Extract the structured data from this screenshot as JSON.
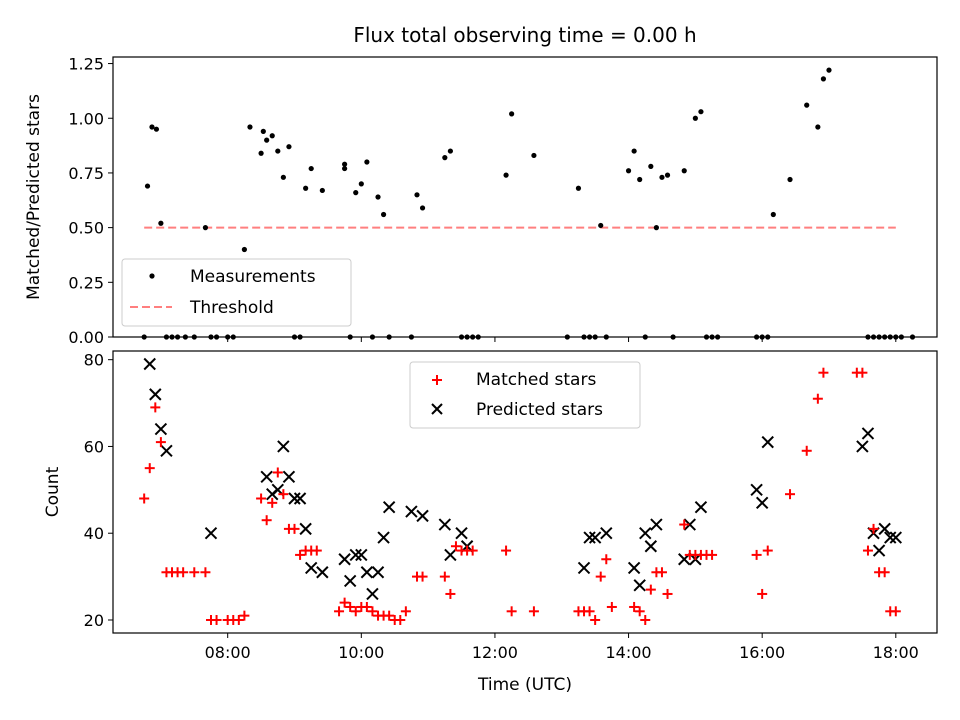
{
  "chart_data": [
    {
      "type": "scatter",
      "title": "Flux total observing time = 0.00 h",
      "xlabel": "",
      "ylabel": "Matched/Predicted stars",
      "x_unit": "hours",
      "xlim": [
        "06:17",
        "18:37"
      ],
      "ylim": [
        0,
        1.28
      ],
      "yticks": [
        0.0,
        0.25,
        0.5,
        0.75,
        1.0,
        1.25
      ],
      "ytick_labels": [
        "0.00",
        "0.25",
        "0.50",
        "0.75",
        "1.00",
        "1.25"
      ],
      "legend": {
        "position": "lower-left",
        "entries": [
          "Measurements",
          "Threshold"
        ]
      },
      "series": [
        {
          "name": "Measurements",
          "style": "black-dot",
          "x": [
            "06:45",
            "06:48",
            "06:52",
            "06:56",
            "07:00",
            "07:05",
            "07:10",
            "07:15",
            "07:22",
            "07:30",
            "07:40",
            "07:45",
            "07:50",
            "08:00",
            "08:05",
            "08:15",
            "08:20",
            "08:30",
            "08:32",
            "08:35",
            "08:40",
            "08:45",
            "08:50",
            "08:55",
            "09:00",
            "09:05",
            "09:10",
            "09:15",
            "09:25",
            "09:45",
            "09:45",
            "09:50",
            "09:55",
            "10:00",
            "10:05",
            "10:10",
            "10:15",
            "10:20",
            "10:25",
            "10:45",
            "10:50",
            "10:55",
            "11:15",
            "11:20",
            "11:30",
            "11:35",
            "11:40",
            "11:45",
            "12:10",
            "12:15",
            "12:35",
            "13:05",
            "13:15",
            "13:20",
            "13:25",
            "13:30",
            "13:35",
            "13:40",
            "14:00",
            "14:05",
            "14:10",
            "14:15",
            "14:20",
            "14:25",
            "14:30",
            "14:35",
            "14:40",
            "14:50",
            "15:00",
            "15:05",
            "15:10",
            "15:15",
            "15:20",
            "15:55",
            "16:00",
            "16:05",
            "16:10",
            "16:25",
            "16:40",
            "16:50",
            "16:55",
            "17:00",
            "17:35",
            "17:40",
            "17:45",
            "17:50",
            "17:55",
            "18:00",
            "18:05",
            "18:15"
          ],
          "y": [
            0.0,
            0.69,
            0.96,
            0.95,
            0.52,
            0.0,
            0.0,
            0.0,
            0.0,
            0.0,
            0.5,
            0.0,
            0.0,
            0.0,
            0.0,
            0.4,
            0.96,
            0.84,
            0.94,
            0.9,
            0.92,
            0.85,
            0.73,
            0.87,
            0.0,
            0.0,
            0.68,
            0.77,
            0.67,
            0.79,
            0.77,
            0.0,
            0.66,
            0.7,
            0.8,
            0.0,
            0.64,
            0.56,
            0.0,
            0.0,
            0.65,
            0.59,
            0.82,
            0.85,
            0.0,
            0.0,
            0.0,
            0.0,
            0.74,
            1.02,
            0.83,
            0.0,
            0.68,
            0.0,
            0.0,
            0.0,
            0.51,
            0.0,
            0.76,
            0.85,
            0.72,
            0.0,
            0.78,
            0.5,
            0.73,
            0.74,
            0.0,
            0.76,
            1.0,
            1.03,
            0.0,
            0.0,
            0.0,
            0.0,
            0.0,
            0.0,
            0.56,
            0.72,
            1.06,
            0.96,
            1.18,
            1.22,
            0.0,
            0.0,
            0.0,
            0.0,
            0.0,
            0.0,
            0.0,
            0.0
          ]
        },
        {
          "name": "Threshold",
          "style": "dashed-salmon",
          "x": [
            "06:45",
            "18:00"
          ],
          "y": [
            0.5,
            0.5
          ]
        }
      ]
    },
    {
      "type": "scatter",
      "title": "",
      "xlabel": "Time (UTC)",
      "ylabel": "Count",
      "x_unit": "hours",
      "xlim": [
        "06:17",
        "18:37"
      ],
      "xticks": [
        "08:00",
        "10:00",
        "12:00",
        "14:00",
        "16:00",
        "18:00"
      ],
      "ylim": [
        17,
        82
      ],
      "yticks": [
        20,
        40,
        60,
        80
      ],
      "legend": {
        "position": "top-center",
        "entries": [
          "Matched stars",
          "Predicted stars"
        ]
      },
      "series": [
        {
          "name": "Matched stars",
          "style": "red-plus",
          "x": [
            "06:45",
            "06:50",
            "06:55",
            "07:00",
            "07:05",
            "07:10",
            "07:15",
            "07:20",
            "07:30",
            "07:40",
            "07:45",
            "07:50",
            "08:00",
            "08:05",
            "08:10",
            "08:15",
            "08:30",
            "08:35",
            "08:40",
            "08:45",
            "08:50",
            "08:55",
            "09:00",
            "09:05",
            "09:10",
            "09:15",
            "09:20",
            "09:40",
            "09:45",
            "09:50",
            "09:55",
            "10:00",
            "10:05",
            "10:10",
            "10:15",
            "10:20",
            "10:25",
            "10:30",
            "10:35",
            "10:40",
            "10:50",
            "10:55",
            "11:15",
            "11:20",
            "11:25",
            "11:30",
            "11:35",
            "11:40",
            "12:10",
            "12:15",
            "12:35",
            "13:15",
            "13:20",
            "13:25",
            "13:30",
            "13:35",
            "13:40",
            "13:45",
            "14:05",
            "14:10",
            "14:15",
            "14:20",
            "14:25",
            "14:30",
            "14:35",
            "14:50",
            "14:55",
            "15:00",
            "15:05",
            "15:10",
            "15:15",
            "15:55",
            "16:00",
            "16:05",
            "16:25",
            "16:40",
            "16:50",
            "16:55",
            "17:25",
            "17:30",
            "17:35",
            "17:40",
            "17:45",
            "17:50",
            "17:55",
            "18:00"
          ],
          "y": [
            48,
            55,
            69,
            61,
            31,
            31,
            31,
            31,
            31,
            31,
            20,
            20,
            20,
            20,
            20,
            21,
            48,
            43,
            47,
            54,
            49,
            41,
            41,
            35,
            36,
            36,
            36,
            22,
            24,
            23,
            22,
            23,
            23,
            22,
            21,
            21,
            21,
            20,
            20,
            22,
            30,
            30,
            30,
            26,
            37,
            36,
            36,
            36,
            36,
            22,
            22,
            22,
            22,
            22,
            20,
            30,
            34,
            23,
            23,
            22,
            20,
            27,
            31,
            31,
            26,
            42,
            35,
            35,
            35,
            35,
            35,
            35,
            26,
            36,
            49,
            59,
            71,
            77,
            77,
            77,
            36,
            41,
            31,
            31,
            22,
            22
          ]
        },
        {
          "name": "Predicted stars",
          "style": "black-x",
          "x": [
            "06:50",
            "06:55",
            "07:00",
            "07:05",
            "07:45",
            "08:35",
            "08:40",
            "08:45",
            "08:50",
            "08:55",
            "09:00",
            "09:05",
            "09:10",
            "09:15",
            "09:25",
            "09:45",
            "09:50",
            "09:55",
            "10:00",
            "10:05",
            "10:10",
            "10:15",
            "10:20",
            "10:25",
            "10:45",
            "10:55",
            "11:15",
            "11:20",
            "11:30",
            "11:35",
            "13:20",
            "13:25",
            "13:30",
            "13:40",
            "14:05",
            "14:10",
            "14:15",
            "14:20",
            "14:25",
            "14:50",
            "14:55",
            "15:00",
            "15:05",
            "15:55",
            "16:00",
            "16:05",
            "17:30",
            "17:35",
            "17:40",
            "17:45",
            "17:50",
            "17:55",
            "18:00"
          ],
          "y": [
            79,
            72,
            64,
            59,
            40,
            53,
            49,
            50,
            60,
            53,
            48,
            48,
            41,
            32,
            31,
            34,
            29,
            35,
            35,
            31,
            26,
            31,
            39,
            46,
            45,
            44,
            42,
            35,
            40,
            37,
            32,
            39,
            39,
            40,
            32,
            28,
            40,
            37,
            42,
            34,
            42,
            34,
            46,
            50,
            47,
            61,
            60,
            63,
            40,
            36,
            41,
            39,
            39
          ]
        }
      ]
    }
  ]
}
